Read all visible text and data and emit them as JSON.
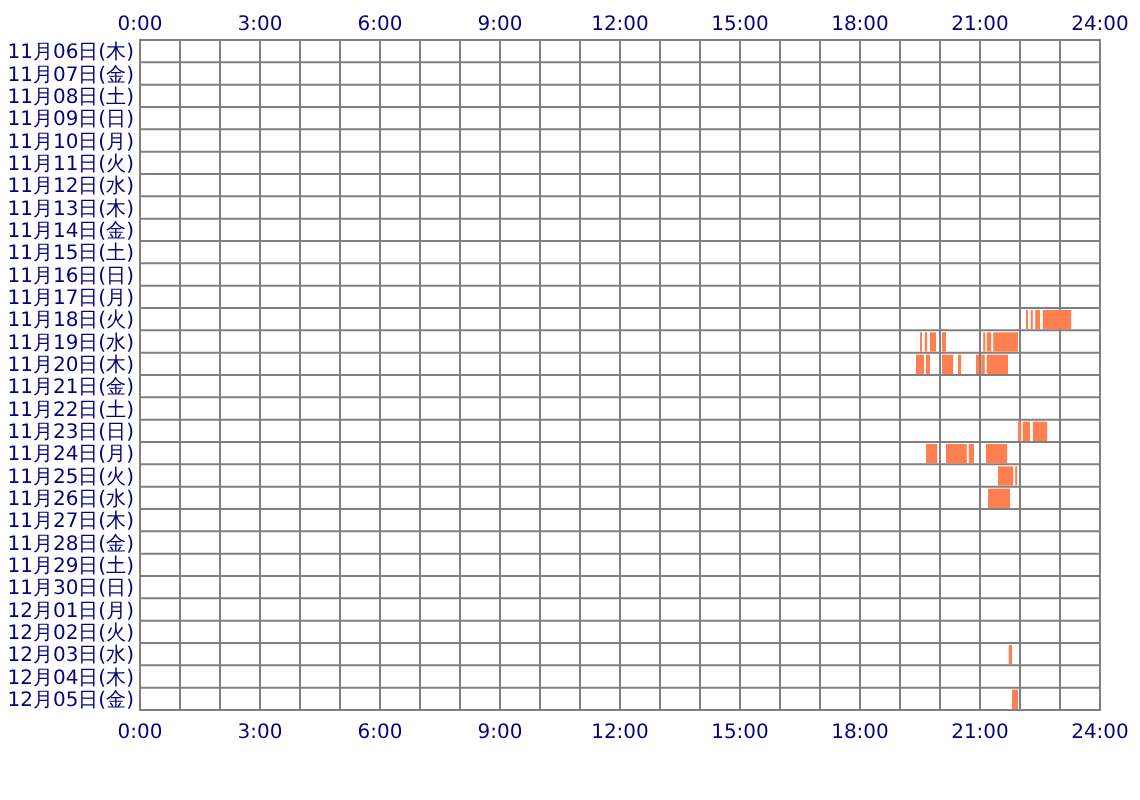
{
  "chart_data": {
    "type": "bar",
    "orientation": "horizontal",
    "grid": true,
    "categories": [
      "11月06日(木)",
      "11月07日(金)",
      "11月08日(土)",
      "11月09日(日)",
      "11月10日(月)",
      "11月11日(火)",
      "11月12日(水)",
      "11月13日(木)",
      "11月14日(金)",
      "11月15日(土)",
      "11月16日(日)",
      "11月17日(月)",
      "11月18日(火)",
      "11月19日(水)",
      "11月20日(木)",
      "11月21日(金)",
      "11月22日(土)",
      "11月23日(日)",
      "11月24日(月)",
      "11月25日(火)",
      "11月26日(水)",
      "11月27日(木)",
      "11月28日(金)",
      "11月29日(土)",
      "11月30日(日)",
      "12月01日(月)",
      "12月02日(火)",
      "12月03日(水)",
      "12月04日(木)",
      "12月05日(金)"
    ],
    "xlim": [
      0,
      24
    ],
    "xticks": [
      {
        "value": 0,
        "label": "0:00"
      },
      {
        "value": 3,
        "label": "3:00"
      },
      {
        "value": 6,
        "label": "6:00"
      },
      {
        "value": 9,
        "label": "9:00"
      },
      {
        "value": 12,
        "label": "12:00"
      },
      {
        "value": 15,
        "label": "15:00"
      },
      {
        "value": 18,
        "label": "18:00"
      },
      {
        "value": 21,
        "label": "21:00"
      },
      {
        "value": 24,
        "label": "24:00"
      }
    ],
    "x2lim": [
      0,
      24
    ],
    "x2ticks": [
      {
        "value": 0,
        "label": "0:00"
      },
      {
        "value": 3,
        "label": "3:00"
      },
      {
        "value": 6,
        "label": "6:00"
      },
      {
        "value": 9,
        "label": "9:00"
      },
      {
        "value": 12,
        "label": "12:00"
      },
      {
        "value": 15,
        "label": "15:00"
      },
      {
        "value": 18,
        "label": "18:00"
      },
      {
        "value": 21,
        "label": "21:00"
      },
      {
        "value": 24,
        "label": "24:00"
      }
    ],
    "series": [
      {
        "color": "#ff7f50",
        "base": [
          null,
          null,
          null,
          null,
          null,
          null,
          null,
          null,
          null,
          null,
          null,
          null,
          22.15,
          19.5,
          19.4,
          null,
          null,
          21.95,
          19.65,
          21.45,
          21.2,
          null,
          null,
          null,
          null,
          null,
          null,
          21.72,
          null,
          21.8
        ],
        "values": [
          null,
          null,
          null,
          null,
          null,
          null,
          null,
          null,
          null,
          null,
          null,
          null,
          0.05,
          0.05,
          0.2,
          null,
          null,
          0.08,
          0.28,
          0.38,
          0.55,
          null,
          null,
          null,
          null,
          null,
          null,
          0.08,
          null,
          0.15
        ]
      },
      {
        "color": "#ff7f50",
        "base": [
          null,
          null,
          null,
          null,
          null,
          null,
          null,
          null,
          null,
          null,
          null,
          null,
          22.27,
          19.62,
          19.65,
          null,
          null,
          22.07,
          20.15,
          21.88,
          null,
          null,
          null,
          null,
          null,
          null,
          null,
          null,
          null,
          null
        ],
        "values": [
          null,
          null,
          null,
          null,
          null,
          null,
          null,
          null,
          null,
          null,
          null,
          null,
          0.05,
          0.06,
          0.1,
          null,
          null,
          0.18,
          0.52,
          0.05,
          null,
          null,
          null,
          null,
          null,
          null,
          null,
          null,
          null,
          null
        ]
      },
      {
        "color": "#ff7f50",
        "base": [
          null,
          null,
          null,
          null,
          null,
          null,
          null,
          null,
          null,
          null,
          null,
          null,
          22.38,
          19.75,
          20.05,
          null,
          null,
          22.32,
          20.72,
          null,
          null,
          null,
          null,
          null,
          null,
          null,
          null,
          null,
          null,
          null
        ],
        "values": [
          null,
          null,
          null,
          null,
          null,
          null,
          null,
          null,
          null,
          null,
          null,
          null,
          0.12,
          0.15,
          0.28,
          null,
          null,
          0.36,
          0.13,
          null,
          null,
          null,
          null,
          null,
          null,
          null,
          null,
          null,
          null,
          null
        ]
      },
      {
        "color": "#ff7f50",
        "base": [
          null,
          null,
          null,
          null,
          null,
          null,
          null,
          null,
          null,
          null,
          null,
          null,
          22.57,
          20.05,
          20.45,
          null,
          null,
          null,
          21.15,
          null,
          null,
          null,
          null,
          null,
          null,
          null,
          null,
          null,
          null,
          null
        ],
        "values": [
          null,
          null,
          null,
          null,
          null,
          null,
          null,
          null,
          null,
          null,
          null,
          null,
          0.71,
          0.1,
          0.08,
          null,
          null,
          null,
          0.53,
          null,
          null,
          null,
          null,
          null,
          null,
          null,
          null,
          null,
          null,
          null
        ]
      },
      {
        "color": "#ff7f50",
        "base": [
          null,
          null,
          null,
          null,
          null,
          null,
          null,
          null,
          null,
          null,
          null,
          null,
          null,
          21.08,
          20.9,
          null,
          null,
          null,
          null,
          null,
          null,
          null,
          null,
          null,
          null,
          null,
          null,
          null,
          null,
          null
        ],
        "values": [
          null,
          null,
          null,
          null,
          null,
          null,
          null,
          null,
          null,
          null,
          null,
          null,
          null,
          0.05,
          0.08,
          null,
          null,
          null,
          null,
          null,
          null,
          null,
          null,
          null,
          null,
          null,
          null,
          null,
          null,
          null
        ]
      },
      {
        "color": "#ff7f50",
        "base": [
          null,
          null,
          null,
          null,
          null,
          null,
          null,
          null,
          null,
          null,
          null,
          null,
          null,
          21.17,
          21.03,
          null,
          null,
          null,
          null,
          null,
          null,
          null,
          null,
          null,
          null,
          null,
          null,
          null,
          null,
          null
        ],
        "values": [
          null,
          null,
          null,
          null,
          null,
          null,
          null,
          null,
          null,
          null,
          null,
          null,
          null,
          0.11,
          0.09,
          null,
          null,
          null,
          null,
          null,
          null,
          null,
          null,
          null,
          null,
          null,
          null,
          null,
          null,
          null
        ]
      },
      {
        "color": "#ff7f50",
        "base": [
          null,
          null,
          null,
          null,
          null,
          null,
          null,
          null,
          null,
          null,
          null,
          null,
          null,
          21.33,
          21.17,
          null,
          null,
          null,
          null,
          null,
          null,
          null,
          null,
          null,
          null,
          null,
          null,
          null,
          null,
          null
        ],
        "values": [
          null,
          null,
          null,
          null,
          null,
          null,
          null,
          null,
          null,
          null,
          null,
          null,
          null,
          0.62,
          0.53,
          null,
          null,
          null,
          null,
          null,
          null,
          null,
          null,
          null,
          null,
          null,
          null,
          null,
          null,
          null
        ]
      }
    ]
  }
}
